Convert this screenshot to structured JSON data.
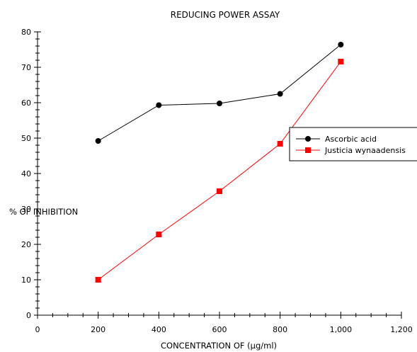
{
  "chart_data": {
    "type": "line",
    "title": "REDUCING POWER ASSAY",
    "xlabel": "CONCENTRATION OF (µg/ml)",
    "ylabel": "% OF INHIBITION",
    "xlim": [
      0,
      1200
    ],
    "ylim": [
      0,
      80
    ],
    "x_ticks": [
      0,
      200,
      400,
      600,
      800,
      1000,
      1200
    ],
    "x_tick_labels": [
      "0",
      "200",
      "400",
      "600",
      "800",
      "1,000",
      "1,200"
    ],
    "y_ticks": [
      0,
      10,
      20,
      30,
      40,
      50,
      60,
      70,
      80
    ],
    "y_tick_labels": [
      "0",
      "10",
      "20",
      "30",
      "40",
      "50",
      "60",
      "70",
      "80"
    ],
    "grid": false,
    "legend_position": "right",
    "x": [
      200,
      400,
      600,
      800,
      1000
    ],
    "series": [
      {
        "name": "Ascorbic acid",
        "color": "#000000",
        "marker": "circle",
        "values": [
          49.2,
          59.3,
          59.8,
          62.5,
          76.4
        ]
      },
      {
        "name": "Justicia wynaadensis",
        "color": "#ff0000",
        "marker": "square",
        "values": [
          10.0,
          22.8,
          35.0,
          48.4,
          71.6
        ]
      }
    ]
  }
}
